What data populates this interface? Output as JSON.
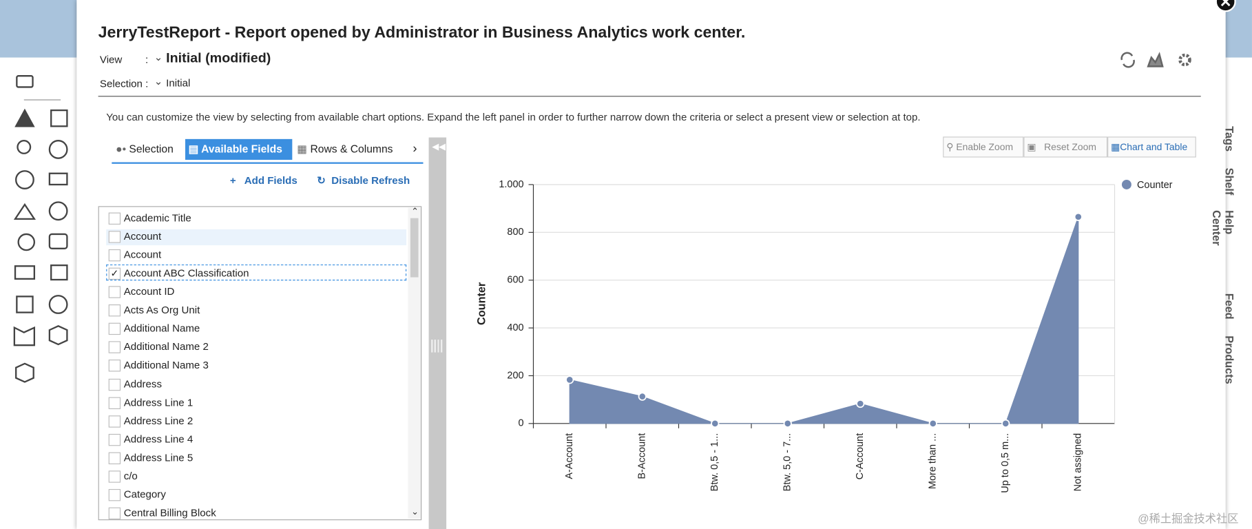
{
  "header": {
    "title": "JerryTestReport - Report opened by Administrator in Business Analytics work center.",
    "view_label": "View",
    "view_separator": ":",
    "view_value": "Initial (modified)",
    "selection_label": "Selection :",
    "selection_value": "Initial"
  },
  "description": "You can customize the view by selecting from available chart options. Expand the left panel in order to further narrow down the criteria or select a present view or selection at top.",
  "tabs": [
    "Selection",
    "Available Fields",
    "Rows & Columns"
  ],
  "actions": [
    "Add Fields",
    "Disable Refresh"
  ],
  "fields": [
    {
      "label": "Academic Title",
      "checked": false
    },
    {
      "label": "Account",
      "checked": false
    },
    {
      "label": "Account",
      "checked": false
    },
    {
      "label": "Account ABC Classification",
      "checked": true
    },
    {
      "label": "Account ID",
      "checked": false
    },
    {
      "label": "Acts As Org Unit",
      "checked": false
    },
    {
      "label": "Additional Name",
      "checked": false
    },
    {
      "label": "Additional Name 2",
      "checked": false
    },
    {
      "label": "Additional Name 3",
      "checked": false
    },
    {
      "label": "Address",
      "checked": false
    },
    {
      "label": "Address Line 1",
      "checked": false
    },
    {
      "label": "Address Line 2",
      "checked": false
    },
    {
      "label": "Address Line 4",
      "checked": false
    },
    {
      "label": "Address Line 5",
      "checked": false
    },
    {
      "label": "c/o",
      "checked": false
    },
    {
      "label": "Category",
      "checked": false
    },
    {
      "label": "Central Billing Block",
      "checked": false
    }
  ],
  "chart_buttons": [
    "Enable Zoom",
    "Reset Zoom",
    "Chart and Table"
  ],
  "side_tabs": [
    "Tags",
    "Shelf",
    "Help Center",
    "Feed",
    "Products"
  ],
  "watermark": "@稀土掘金技术社区",
  "chart_data": {
    "type": "area",
    "y_label": "Counter",
    "categories": [
      "A-Account",
      "B-Account",
      "Btw. 0,5 - 1...",
      "Btw. 5,0 - 7...",
      "C-Account",
      "More than ...",
      "Up to 0,5 m...",
      "Not assigned"
    ],
    "series": [
      {
        "name": "Counter",
        "color": "#7389b1",
        "values": [
          183,
          113,
          0,
          0,
          83,
          0,
          0,
          865
        ]
      }
    ],
    "ylim": [
      0,
      1000
    ],
    "yticks": [
      0,
      200,
      400,
      600,
      800,
      {
        "value": 1000,
        "label": "1.000"
      }
    ],
    "grid": true,
    "legend": "top-right"
  }
}
